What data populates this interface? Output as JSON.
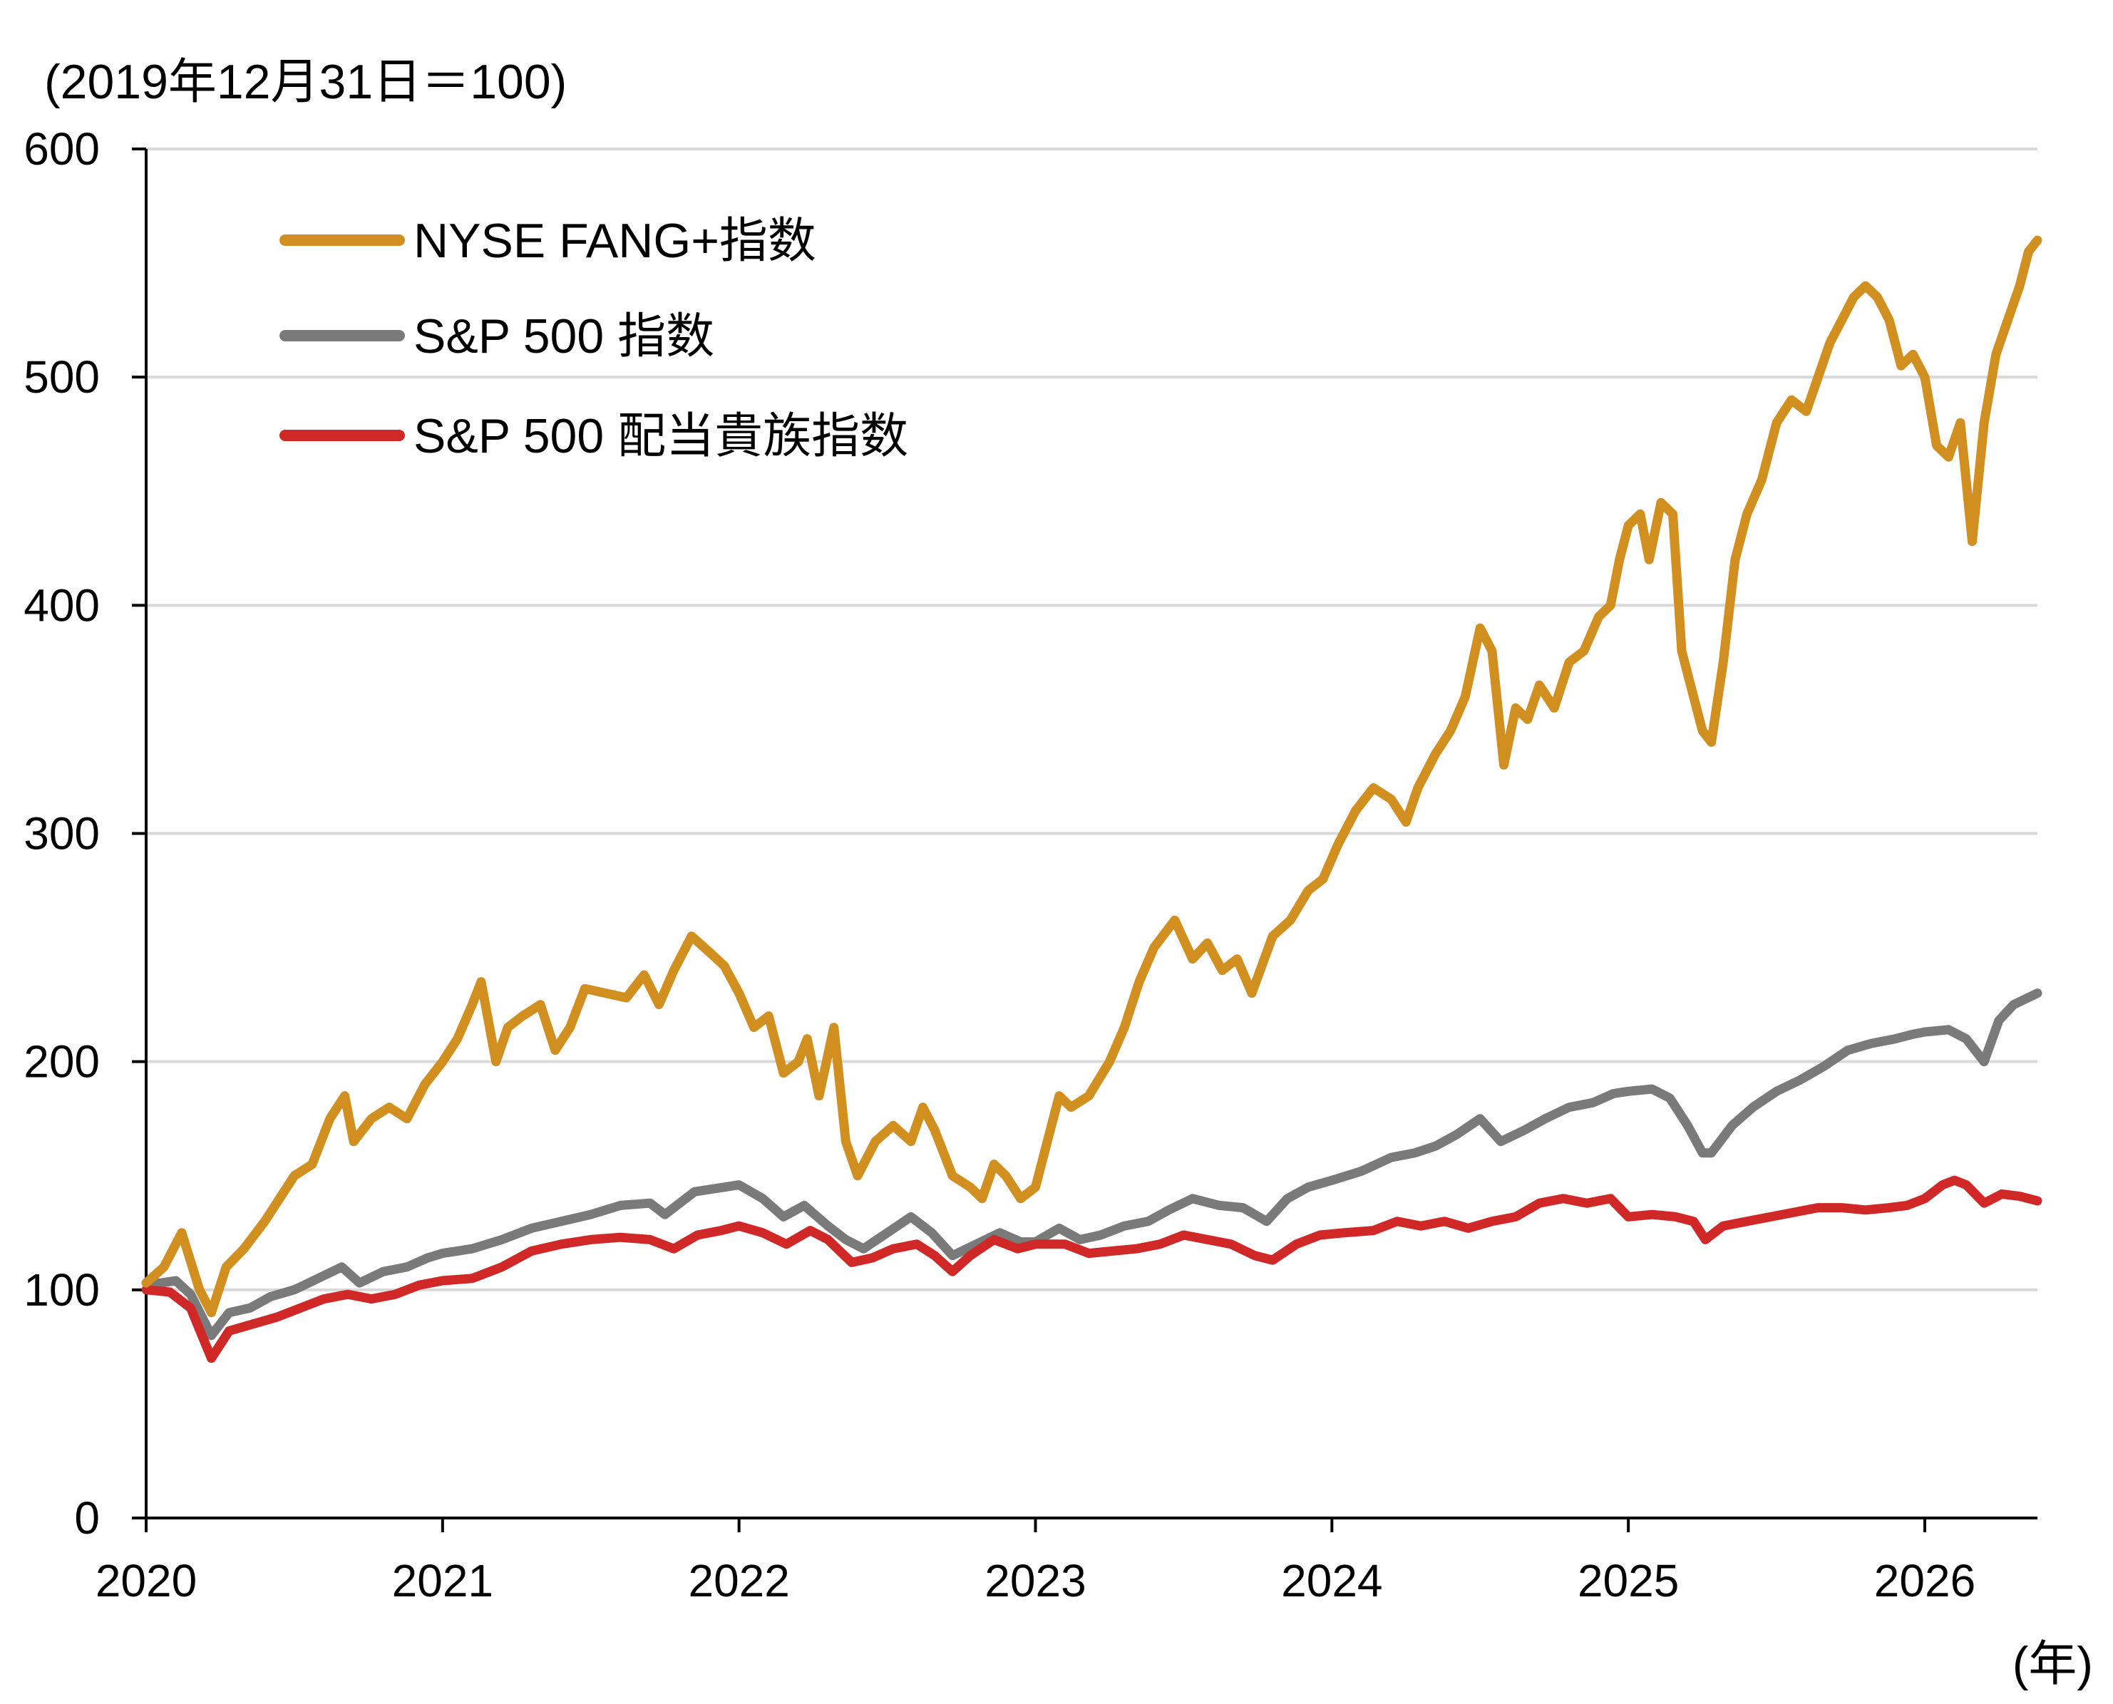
{
  "chart_data": {
    "type": "line",
    "title": "",
    "ylabel": "(2019年12月31日＝100)",
    "xlabel": "(年)",
    "ylim": [
      0,
      600
    ],
    "xlim": [
      2020.0,
      2026.38
    ],
    "y_ticks": [
      0,
      100,
      200,
      300,
      400,
      500,
      600
    ],
    "x_ticks": [
      2020,
      2021,
      2022,
      2023,
      2024,
      2025,
      2026
    ],
    "grid": true,
    "legend_position": "top-left",
    "series": [
      {
        "name": "NYSE FANG+指数",
        "color": "#d18f1f",
        "points": [
          [
            2020.0,
            103
          ],
          [
            2020.06,
            110
          ],
          [
            2020.12,
            125
          ],
          [
            2020.18,
            100
          ],
          [
            2020.22,
            90
          ],
          [
            2020.27,
            110
          ],
          [
            2020.33,
            118
          ],
          [
            2020.4,
            130
          ],
          [
            2020.45,
            140
          ],
          [
            2020.5,
            150
          ],
          [
            2020.56,
            155
          ],
          [
            2020.62,
            175
          ],
          [
            2020.67,
            185
          ],
          [
            2020.7,
            165
          ],
          [
            2020.76,
            175
          ],
          [
            2020.82,
            180
          ],
          [
            2020.88,
            175
          ],
          [
            2020.94,
            190
          ],
          [
            2021.0,
            200
          ],
          [
            2021.05,
            210
          ],
          [
            2021.1,
            225
          ],
          [
            2021.13,
            235
          ],
          [
            2021.18,
            200
          ],
          [
            2021.22,
            215
          ],
          [
            2021.27,
            220
          ],
          [
            2021.33,
            225
          ],
          [
            2021.38,
            205
          ],
          [
            2021.43,
            215
          ],
          [
            2021.48,
            232
          ],
          [
            2021.55,
            230
          ],
          [
            2021.62,
            228
          ],
          [
            2021.68,
            238
          ],
          [
            2021.73,
            225
          ],
          [
            2021.78,
            240
          ],
          [
            2021.84,
            255
          ],
          [
            2021.9,
            248
          ],
          [
            2021.95,
            242
          ],
          [
            2022.0,
            230
          ],
          [
            2022.05,
            215
          ],
          [
            2022.1,
            220
          ],
          [
            2022.15,
            195
          ],
          [
            2022.2,
            200
          ],
          [
            2022.23,
            210
          ],
          [
            2022.27,
            185
          ],
          [
            2022.32,
            215
          ],
          [
            2022.36,
            165
          ],
          [
            2022.4,
            150
          ],
          [
            2022.46,
            165
          ],
          [
            2022.52,
            172
          ],
          [
            2022.58,
            165
          ],
          [
            2022.62,
            180
          ],
          [
            2022.66,
            170
          ],
          [
            2022.72,
            150
          ],
          [
            2022.78,
            145
          ],
          [
            2022.82,
            140
          ],
          [
            2022.86,
            155
          ],
          [
            2022.9,
            150
          ],
          [
            2022.95,
            140
          ],
          [
            2023.0,
            145
          ],
          [
            2023.04,
            165
          ],
          [
            2023.08,
            185
          ],
          [
            2023.12,
            180
          ],
          [
            2023.18,
            185
          ],
          [
            2023.25,
            200
          ],
          [
            2023.3,
            215
          ],
          [
            2023.35,
            235
          ],
          [
            2023.4,
            250
          ],
          [
            2023.47,
            262
          ],
          [
            2023.53,
            245
          ],
          [
            2023.58,
            252
          ],
          [
            2023.63,
            240
          ],
          [
            2023.68,
            245
          ],
          [
            2023.73,
            230
          ],
          [
            2023.8,
            255
          ],
          [
            2023.86,
            262
          ],
          [
            2023.92,
            275
          ],
          [
            2023.97,
            280
          ],
          [
            2024.02,
            295
          ],
          [
            2024.08,
            310
          ],
          [
            2024.14,
            320
          ],
          [
            2024.2,
            315
          ],
          [
            2024.25,
            305
          ],
          [
            2024.29,
            320
          ],
          [
            2024.35,
            335
          ],
          [
            2024.4,
            345
          ],
          [
            2024.45,
            360
          ],
          [
            2024.5,
            390
          ],
          [
            2024.54,
            380
          ],
          [
            2024.58,
            330
          ],
          [
            2024.62,
            355
          ],
          [
            2024.66,
            350
          ],
          [
            2024.7,
            365
          ],
          [
            2024.75,
            355
          ],
          [
            2024.8,
            375
          ],
          [
            2024.85,
            380
          ],
          [
            2024.9,
            395
          ],
          [
            2024.94,
            400
          ],
          [
            2024.97,
            420
          ],
          [
            2025.0,
            435
          ],
          [
            2025.04,
            440
          ],
          [
            2025.07,
            420
          ],
          [
            2025.11,
            445
          ],
          [
            2025.15,
            440
          ],
          [
            2025.18,
            380
          ],
          [
            2025.22,
            360
          ],
          [
            2025.25,
            345
          ],
          [
            2025.28,
            340
          ],
          [
            2025.32,
            375
          ],
          [
            2025.36,
            420
          ],
          [
            2025.4,
            440
          ],
          [
            2025.45,
            455
          ],
          [
            2025.5,
            480
          ],
          [
            2025.55,
            490
          ],
          [
            2025.6,
            485
          ],
          [
            2025.64,
            500
          ],
          [
            2025.68,
            515
          ],
          [
            2025.72,
            525
          ],
          [
            2025.76,
            535
          ],
          [
            2025.8,
            540
          ],
          [
            2025.84,
            535
          ],
          [
            2025.88,
            525
          ],
          [
            2025.92,
            505
          ],
          [
            2025.96,
            510
          ],
          [
            2026.0,
            500
          ],
          [
            2026.04,
            470
          ],
          [
            2026.08,
            465
          ],
          [
            2026.12,
            480
          ],
          [
            2026.16,
            428
          ],
          [
            2026.2,
            480
          ],
          [
            2026.24,
            510
          ],
          [
            2026.28,
            525
          ],
          [
            2026.32,
            540
          ],
          [
            2026.35,
            555
          ],
          [
            2026.38,
            560
          ]
        ]
      },
      {
        "name": "S&P 500 指数",
        "color": "#7a7a7a",
        "points": [
          [
            2020.0,
            103
          ],
          [
            2020.05,
            103
          ],
          [
            2020.1,
            104
          ],
          [
            2020.15,
            98
          ],
          [
            2020.22,
            80
          ],
          [
            2020.28,
            90
          ],
          [
            2020.35,
            92
          ],
          [
            2020.42,
            97
          ],
          [
            2020.5,
            100
          ],
          [
            2020.58,
            105
          ],
          [
            2020.66,
            110
          ],
          [
            2020.72,
            103
          ],
          [
            2020.8,
            108
          ],
          [
            2020.88,
            110
          ],
          [
            2020.95,
            114
          ],
          [
            2021.0,
            116
          ],
          [
            2021.1,
            118
          ],
          [
            2021.2,
            122
          ],
          [
            2021.3,
            127
          ],
          [
            2021.4,
            130
          ],
          [
            2021.5,
            133
          ],
          [
            2021.6,
            137
          ],
          [
            2021.7,
            138
          ],
          [
            2021.75,
            133
          ],
          [
            2021.85,
            143
          ],
          [
            2021.95,
            145
          ],
          [
            2022.0,
            146
          ],
          [
            2022.08,
            140
          ],
          [
            2022.15,
            132
          ],
          [
            2022.22,
            137
          ],
          [
            2022.3,
            128
          ],
          [
            2022.36,
            122
          ],
          [
            2022.42,
            118
          ],
          [
            2022.5,
            125
          ],
          [
            2022.58,
            132
          ],
          [
            2022.65,
            125
          ],
          [
            2022.72,
            115
          ],
          [
            2022.8,
            120
          ],
          [
            2022.88,
            125
          ],
          [
            2022.95,
            121
          ],
          [
            2023.0,
            121
          ],
          [
            2023.08,
            127
          ],
          [
            2023.15,
            122
          ],
          [
            2023.22,
            124
          ],
          [
            2023.3,
            128
          ],
          [
            2023.38,
            130
          ],
          [
            2023.45,
            135
          ],
          [
            2023.53,
            140
          ],
          [
            2023.62,
            137
          ],
          [
            2023.7,
            136
          ],
          [
            2023.78,
            130
          ],
          [
            2023.85,
            140
          ],
          [
            2023.92,
            145
          ],
          [
            2024.0,
            148
          ],
          [
            2024.1,
            152
          ],
          [
            2024.2,
            158
          ],
          [
            2024.28,
            160
          ],
          [
            2024.35,
            163
          ],
          [
            2024.42,
            168
          ],
          [
            2024.5,
            175
          ],
          [
            2024.57,
            165
          ],
          [
            2024.65,
            170
          ],
          [
            2024.72,
            175
          ],
          [
            2024.8,
            180
          ],
          [
            2024.88,
            182
          ],
          [
            2024.95,
            186
          ],
          [
            2025.0,
            187
          ],
          [
            2025.08,
            188
          ],
          [
            2025.14,
            184
          ],
          [
            2025.2,
            172
          ],
          [
            2025.25,
            160
          ],
          [
            2025.28,
            160
          ],
          [
            2025.35,
            172
          ],
          [
            2025.42,
            180
          ],
          [
            2025.5,
            187
          ],
          [
            2025.58,
            192
          ],
          [
            2025.66,
            198
          ],
          [
            2025.74,
            205
          ],
          [
            2025.82,
            208
          ],
          [
            2025.9,
            210
          ],
          [
            2025.96,
            212
          ],
          [
            2026.0,
            213
          ],
          [
            2026.08,
            214
          ],
          [
            2026.14,
            210
          ],
          [
            2026.2,
            200
          ],
          [
            2026.25,
            218
          ],
          [
            2026.3,
            225
          ],
          [
            2026.38,
            230
          ]
        ]
      },
      {
        "name": "S&P 500 配当貴族指数",
        "color": "#d02727",
        "points": [
          [
            2020.0,
            100
          ],
          [
            2020.08,
            99
          ],
          [
            2020.15,
            92
          ],
          [
            2020.22,
            70
          ],
          [
            2020.28,
            82
          ],
          [
            2020.36,
            85
          ],
          [
            2020.44,
            88
          ],
          [
            2020.52,
            92
          ],
          [
            2020.6,
            96
          ],
          [
            2020.68,
            98
          ],
          [
            2020.76,
            96
          ],
          [
            2020.84,
            98
          ],
          [
            2020.92,
            102
          ],
          [
            2021.0,
            104
          ],
          [
            2021.1,
            105
          ],
          [
            2021.2,
            110
          ],
          [
            2021.3,
            117
          ],
          [
            2021.4,
            120
          ],
          [
            2021.5,
            122
          ],
          [
            2021.6,
            123
          ],
          [
            2021.7,
            122
          ],
          [
            2021.78,
            118
          ],
          [
            2021.86,
            124
          ],
          [
            2021.94,
            126
          ],
          [
            2022.0,
            128
          ],
          [
            2022.08,
            125
          ],
          [
            2022.16,
            120
          ],
          [
            2022.24,
            126
          ],
          [
            2022.3,
            122
          ],
          [
            2022.38,
            112
          ],
          [
            2022.45,
            114
          ],
          [
            2022.52,
            118
          ],
          [
            2022.6,
            120
          ],
          [
            2022.66,
            115
          ],
          [
            2022.72,
            108
          ],
          [
            2022.78,
            115
          ],
          [
            2022.86,
            122
          ],
          [
            2022.94,
            118
          ],
          [
            2023.0,
            120
          ],
          [
            2023.1,
            120
          ],
          [
            2023.18,
            116
          ],
          [
            2023.26,
            117
          ],
          [
            2023.34,
            118
          ],
          [
            2023.42,
            120
          ],
          [
            2023.5,
            124
          ],
          [
            2023.58,
            122
          ],
          [
            2023.66,
            120
          ],
          [
            2023.74,
            115
          ],
          [
            2023.8,
            113
          ],
          [
            2023.88,
            120
          ],
          [
            2023.96,
            124
          ],
          [
            2024.04,
            125
          ],
          [
            2024.14,
            126
          ],
          [
            2024.22,
            130
          ],
          [
            2024.3,
            128
          ],
          [
            2024.38,
            130
          ],
          [
            2024.46,
            127
          ],
          [
            2024.54,
            130
          ],
          [
            2024.62,
            132
          ],
          [
            2024.7,
            138
          ],
          [
            2024.78,
            140
          ],
          [
            2024.86,
            138
          ],
          [
            2024.94,
            140
          ],
          [
            2025.0,
            132
          ],
          [
            2025.08,
            133
          ],
          [
            2025.16,
            132
          ],
          [
            2025.22,
            130
          ],
          [
            2025.26,
            122
          ],
          [
            2025.32,
            128
          ],
          [
            2025.4,
            130
          ],
          [
            2025.48,
            132
          ],
          [
            2025.56,
            134
          ],
          [
            2025.64,
            136
          ],
          [
            2025.72,
            136
          ],
          [
            2025.8,
            135
          ],
          [
            2025.88,
            136
          ],
          [
            2025.94,
            137
          ],
          [
            2026.0,
            140
          ],
          [
            2026.06,
            146
          ],
          [
            2026.1,
            148
          ],
          [
            2026.14,
            146
          ],
          [
            2026.2,
            138
          ],
          [
            2026.26,
            142
          ],
          [
            2026.32,
            141
          ],
          [
            2026.38,
            139
          ]
        ]
      }
    ]
  }
}
